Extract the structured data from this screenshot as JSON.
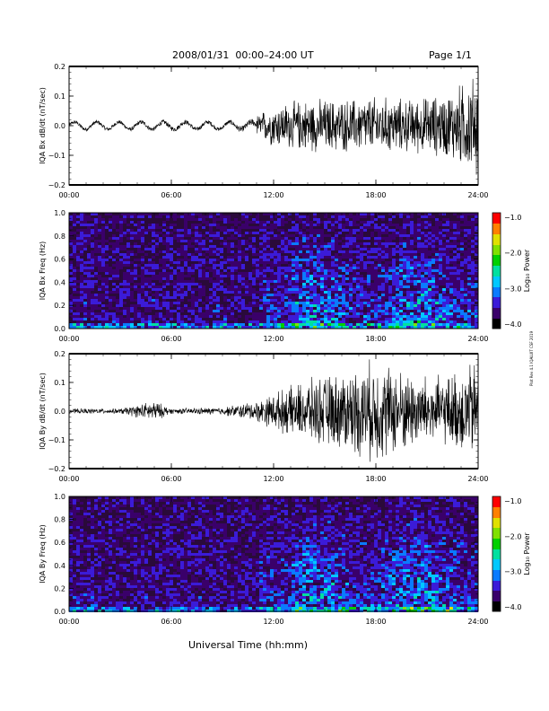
{
  "header": {
    "title": "2008/01/31  00:00–24:00 UT",
    "page": "Page 1/1"
  },
  "footer": {
    "xlabel": "Universal Time (hh:mm)",
    "credit": "Plot Rev 4.1 IQALUIT CSF 2019"
  },
  "colors": {
    "trace": "#000000",
    "colorbar": [
      "#000000",
      "#3a006a",
      "#3b1bd8",
      "#0a7bff",
      "#00c8ff",
      "#00e0a0",
      "#00d000",
      "#80e000",
      "#e0e000",
      "#ff8000",
      "#ff0000"
    ]
  },
  "chart_data": [
    {
      "type": "line",
      "ylabel": "IQA Bx dB/dt (nT/sec)",
      "xlabel": "",
      "x_ticks": [
        "00:00",
        "06:00",
        "12:00",
        "18:00",
        "24:00"
      ],
      "xlim": [
        0,
        24
      ],
      "ylim": [
        -0.2,
        0.2
      ],
      "y_ticks": [
        "0.2",
        "0.1",
        "0.0",
        "−0.1",
        "−0.2"
      ],
      "envelope": {
        "hours": [
          0,
          3,
          6,
          9,
          11,
          12,
          14,
          16,
          18,
          20,
          22,
          23,
          24
        ],
        "amplitude": [
          0.02,
          0.02,
          0.025,
          0.02,
          0.04,
          0.08,
          0.1,
          0.1,
          0.11,
          0.1,
          0.12,
          0.16,
          0.2
        ]
      }
    },
    {
      "type": "heatmap",
      "ylabel": "IQA Bx Freq (Hz)",
      "x_ticks": [
        "00:00",
        "06:00",
        "12:00",
        "18:00",
        "24:00"
      ],
      "xlim": [
        0,
        24
      ],
      "ylim": [
        0.0,
        1.0
      ],
      "y_ticks": [
        "1.0",
        "0.8",
        "0.6",
        "0.4",
        "0.2",
        "0.0"
      ],
      "colorbar": {
        "label": "Log₁₀ Power",
        "ticks": [
          "−1.0",
          "−2.0",
          "−3.0",
          "−4.0"
        ],
        "range": [
          -4.0,
          -1.0
        ]
      }
    },
    {
      "type": "line",
      "ylabel": "IQA By dB/dt (nT/sec)",
      "xlabel": "",
      "x_ticks": [
        "00:00",
        "06:00",
        "12:00",
        "18:00",
        "24:00"
      ],
      "xlim": [
        0,
        24
      ],
      "ylim": [
        -0.2,
        0.2
      ],
      "y_ticks": [
        "0.2",
        "0.1",
        "0.0",
        "−0.1",
        "−0.2"
      ],
      "envelope": {
        "hours": [
          0,
          3,
          5,
          6,
          9,
          11,
          12,
          14,
          16,
          18,
          20,
          22,
          24
        ],
        "amplitude": [
          0.01,
          0.01,
          0.04,
          0.01,
          0.015,
          0.04,
          0.07,
          0.12,
          0.15,
          0.2,
          0.15,
          0.13,
          0.2
        ]
      }
    },
    {
      "type": "heatmap",
      "ylabel": "IQA By Freq (Hz)",
      "x_ticks": [
        "00:00",
        "06:00",
        "12:00",
        "18:00",
        "24:00"
      ],
      "xlim": [
        0,
        24
      ],
      "ylim": [
        0.0,
        1.0
      ],
      "y_ticks": [
        "1.0",
        "0.8",
        "0.6",
        "0.4",
        "0.2",
        "0.0"
      ],
      "colorbar": {
        "label": "Log₁₀ Power",
        "ticks": [
          "−1.0",
          "−2.0",
          "−3.0",
          "−4.0"
        ],
        "range": [
          -4.0,
          -1.0
        ]
      }
    }
  ]
}
